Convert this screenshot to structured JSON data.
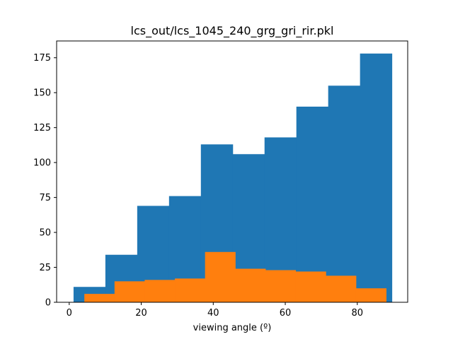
{
  "chart_data": {
    "type": "bar",
    "title": "lcs_out/lcs_1045_240_grg_gri_rir.pkl",
    "xlabel": "viewing angle (º)",
    "ylabel": "",
    "xlim": [
      -3.5,
      94
    ],
    "ylim": [
      0,
      187
    ],
    "xticks": [
      0,
      20,
      40,
      60,
      80
    ],
    "yticks": [
      0,
      25,
      50,
      75,
      100,
      125,
      150,
      175
    ],
    "grid": false,
    "legend": "none",
    "series": [
      {
        "color": "#1f77b4",
        "edges": [
          1.2,
          10.04,
          18.88,
          27.72,
          36.56,
          45.4,
          54.24,
          63.08,
          71.92,
          80.76,
          89.6
        ],
        "values": [
          11,
          34,
          69,
          76,
          113,
          106,
          118,
          140,
          155,
          178
        ]
      },
      {
        "color": "#ff7f0e",
        "edges": [
          4.2,
          12.58,
          20.96,
          29.34,
          37.72,
          46.1,
          54.48,
          62.86,
          71.24,
          79.62,
          88.0
        ],
        "values": [
          6,
          15,
          16,
          17,
          36,
          24,
          23,
          22,
          19,
          10
        ]
      }
    ]
  }
}
